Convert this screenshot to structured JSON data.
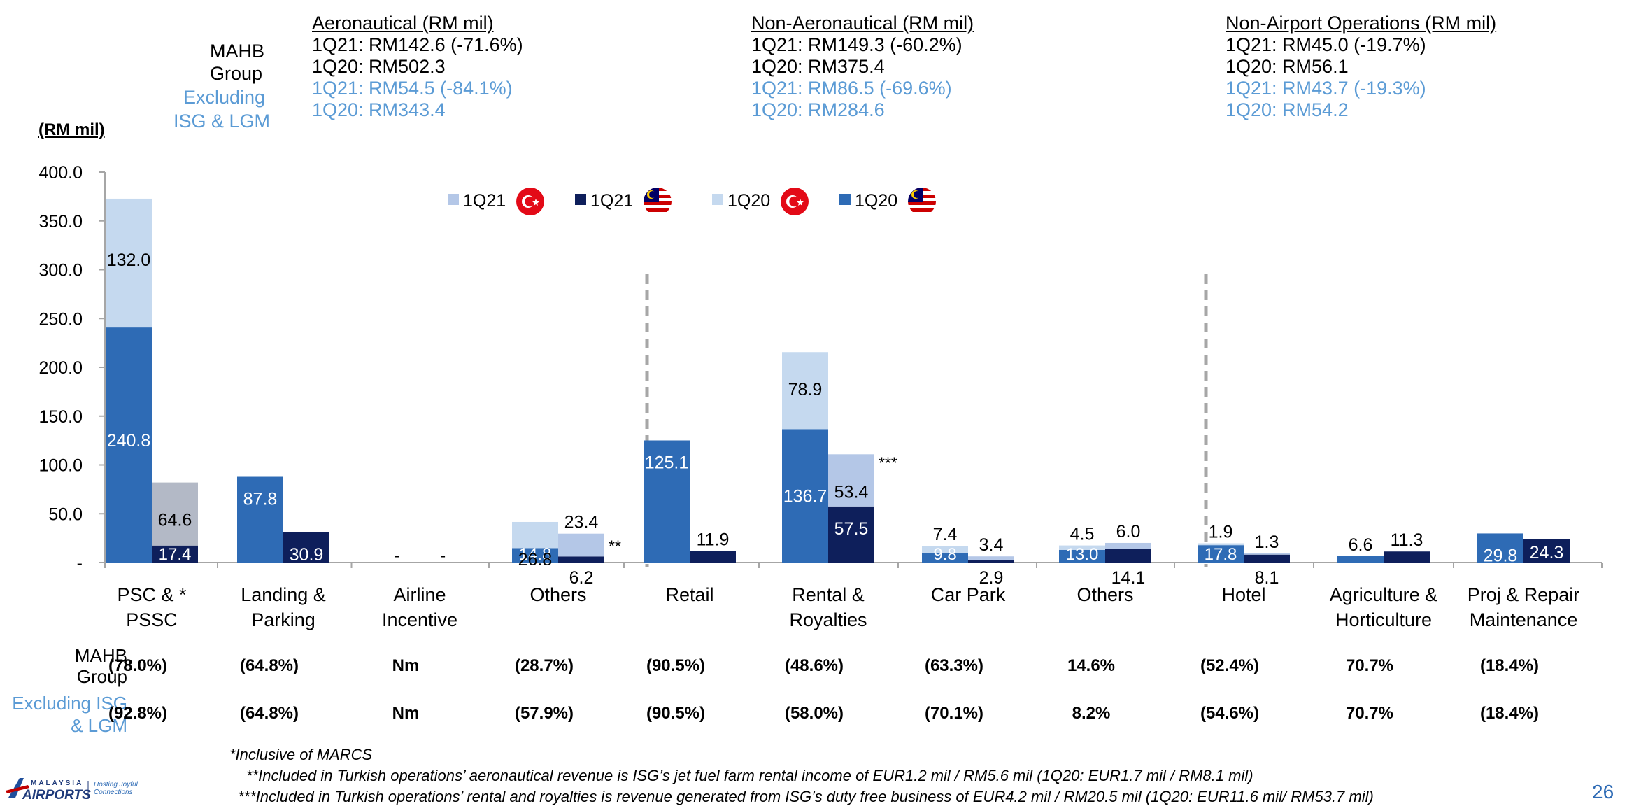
{
  "header": {
    "unit_label": "(RM mil)",
    "row_labels": {
      "group_l1": "MAHB",
      "group_l2": "Group",
      "excl_l1": "Excluding",
      "excl_l2": "ISG & LGM"
    },
    "sections": [
      {
        "title": "Aeronautical (RM mil)",
        "group_1q21": "1Q21: RM142.6 (-71.6%)",
        "group_1q20": "1Q20: RM502.3",
        "excl_1q21": "1Q21: RM54.5 (-84.1%)",
        "excl_1q20": "1Q20: RM343.4"
      },
      {
        "title": "Non-Aeronautical (RM mil)",
        "group_1q21": "1Q21: RM149.3 (-60.2%)",
        "group_1q20": "1Q20: RM375.4",
        "excl_1q21": "1Q21: RM86.5 (-69.6%)",
        "excl_1q20": "1Q20: RM284.6"
      },
      {
        "title": "Non-Airport Operations (RM mil)",
        "group_1q21": "1Q21: RM45.0 (-19.7%)",
        "group_1q20": "1Q20: RM56.1",
        "excl_1q21": "1Q21: RM43.7 (-19.3%)",
        "excl_1q20": "1Q20: RM54.2"
      }
    ]
  },
  "chart_data": {
    "type": "bar",
    "stacked": true,
    "ylim": [
      0,
      400
    ],
    "yticks": [
      "-",
      "50.0",
      "100.0",
      "150.0",
      "200.0",
      "250.0",
      "300.0",
      "350.0",
      "400.0"
    ],
    "legend": [
      {
        "label": "1Q21",
        "flag": "turkey-flag",
        "color": "#b4c7e7"
      },
      {
        "label": "1Q21",
        "flag": "malaysia-flag",
        "color": "#0e1f5b"
      },
      {
        "label": "1Q20",
        "flag": "turkey-flag",
        "color": "#c5d9ef"
      },
      {
        "label": "1Q20",
        "flag": "malaysia-flag",
        "color": "#2e6bb5"
      }
    ],
    "colors": {
      "q20_my": "#2e6bb5",
      "q20_tr": "#c5d9ef",
      "q21_my": "#0e1f5b",
      "q21_tr": "#b3b9c6",
      "q21_tr_light": "#b4c7e7"
    },
    "categories": [
      {
        "name": "PSC &\nPSSC",
        "marker": "*",
        "q20_my": 240.8,
        "q20_tr": 132.0,
        "q21_my": 17.4,
        "q21_tr": 64.6
      },
      {
        "name": "Landing &\nParking",
        "q20_my": 87.8,
        "q20_tr": 0,
        "q21_my": 30.9,
        "q21_tr": 0
      },
      {
        "name": "Airline\nIncentive",
        "q20_my": 0,
        "q20_tr": 0,
        "q21_my": 0,
        "q21_tr": 0,
        "zero_label": "-"
      },
      {
        "name": "Others",
        "q20_my": 14.8,
        "q20_tr": 26.8,
        "q21_my": 6.2,
        "q21_tr": 23.4,
        "marker2": "**"
      },
      {
        "name": "Retail",
        "q20_my": 125.1,
        "q20_tr": 0,
        "q21_my": 11.9,
        "q21_tr": 0
      },
      {
        "name": "Rental &\nRoyalties",
        "q20_my": 136.7,
        "q20_tr": 78.9,
        "q21_my": 57.5,
        "q21_tr": 53.4,
        "marker2": "***"
      },
      {
        "name": "Car Park",
        "q20_my": 9.8,
        "q20_tr": 7.4,
        "q21_my": 2.9,
        "q21_tr": 3.4
      },
      {
        "name": "Others",
        "q20_my": 13.0,
        "q20_tr": 4.5,
        "q21_my": 14.1,
        "q21_tr": 6.0
      },
      {
        "name": "Hotel",
        "q20_my": 17.8,
        "q20_tr": 1.9,
        "q21_my": 8.1,
        "q21_tr": 1.3
      },
      {
        "name": "Agriculture &\nHorticulture",
        "q20_my": 6.6,
        "q20_tr": 0,
        "q21_my": 11.3,
        "q21_tr": 0
      },
      {
        "name": "Proj & Repair\nMaintenance",
        "q20_my": 29.8,
        "q20_tr": 0,
        "q21_my": 24.3,
        "q21_tr": 0
      }
    ]
  },
  "growth": {
    "group_label_1": "MAHB",
    "group_label_2": "Group",
    "excl_label_1": "Excluding ISG",
    "excl_label_2": "& LGM",
    "group": [
      "(78.0%)",
      "(64.8%)",
      "Nm",
      "(28.7%)",
      "(90.5%)",
      "(48.6%)",
      "(63.3%)",
      "14.6%",
      "(52.4%)",
      "70.7%",
      "(18.4%)"
    ],
    "excl": [
      "(92.8%)",
      "(64.8%)",
      "Nm",
      "(57.9%)",
      "(90.5%)",
      "(58.0%)",
      "(70.1%)",
      "8.2%",
      "(54.6%)",
      "70.7%",
      "(18.4%)"
    ]
  },
  "notes": {
    "n1": "*Inclusive of MARCS",
    "n2": "**Included in Turkish operations’ aeronautical revenue is ISG’s jet fuel farm rental income of EUR1.2 mil / RM5.6 mil (1Q20: EUR1.7 mil / RM8.1 mil)",
    "n3": "***Included in Turkish operations’ rental and royalties is revenue generated from ISG’s duty free business of EUR4.2 mil / RM20.5 mil (1Q20: EUR11.6 mil/ RM53.7 mil)"
  },
  "footer": {
    "brand_top": "MALAYSIA",
    "brand_bottom": "AIRPORTS",
    "tagline": "Hosting Joyful Connections",
    "page_number": "26"
  }
}
